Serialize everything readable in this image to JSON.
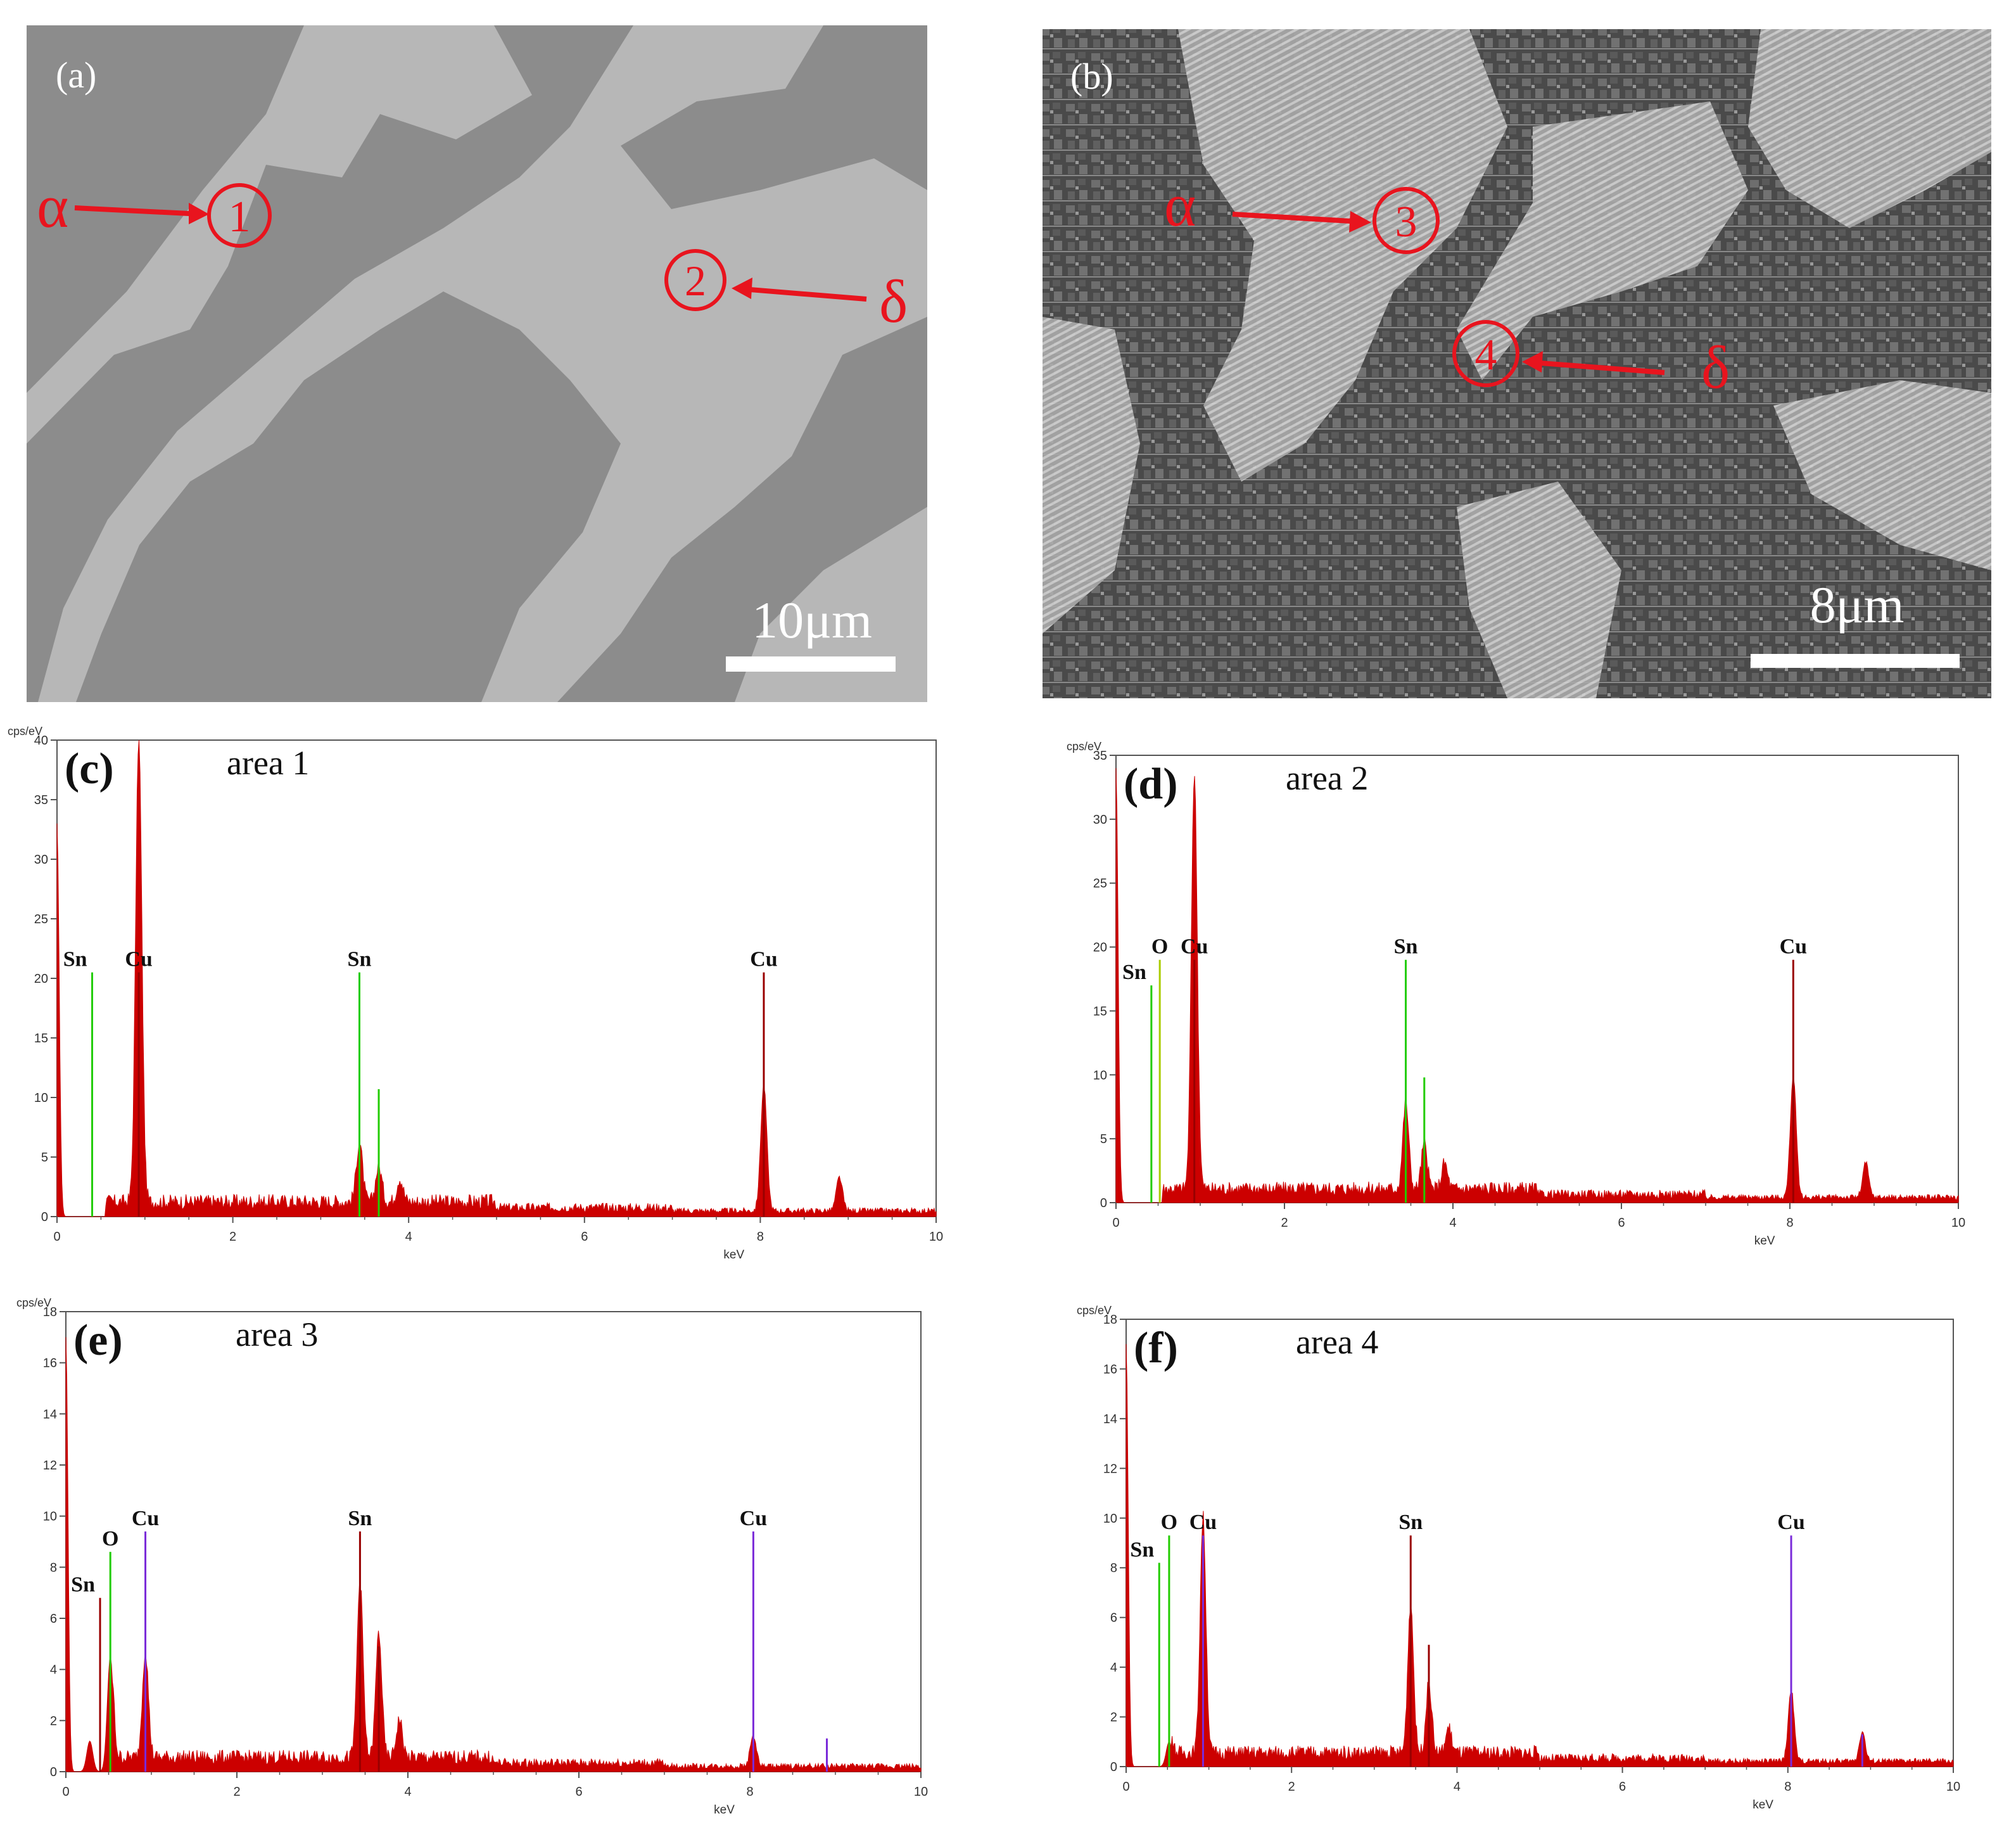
{
  "micrographs": [
    {
      "panel_label": "(a)",
      "annotations": [
        {
          "phase": "α",
          "area": "1"
        },
        {
          "phase": "δ",
          "area": "2"
        }
      ],
      "scale_bar": "10μm"
    },
    {
      "panel_label": "(b)",
      "annotations": [
        {
          "phase": "α",
          "area": "3"
        },
        {
          "phase": "δ",
          "area": "4"
        }
      ],
      "scale_bar": "8μm"
    }
  ],
  "colors": {
    "spectrum": "#cc0000",
    "sn_line": "#22cc00",
    "o_line": "#aacc00",
    "cu_line": "#990000",
    "marker_line": "#7a2bd9",
    "annotation": "#e8141e"
  },
  "chart_data": [
    {
      "type": "area",
      "panel_label": "(c)",
      "title": "area 1",
      "ylabel": "cps/eV",
      "xlabel": "keV",
      "xlim": [
        0,
        10
      ],
      "ylim": [
        0,
        40
      ],
      "xticks": [
        0,
        2,
        4,
        6,
        8,
        10
      ],
      "yticks": [
        0,
        5,
        10,
        15,
        20,
        25,
        30,
        35,
        40
      ],
      "peaks": [
        {
          "x": 0.0,
          "y": 33.0
        },
        {
          "x": 0.93,
          "y": 39.0
        },
        {
          "x": 3.44,
          "y": 5.0
        },
        {
          "x": 3.66,
          "y": 3.0
        },
        {
          "x": 3.9,
          "y": 2.0
        },
        {
          "x": 8.04,
          "y": 10.5
        },
        {
          "x": 8.9,
          "y": 2.8
        }
      ],
      "element_lines": [
        {
          "element": "Sn",
          "x": 0.4,
          "height": 20.5,
          "line": "green"
        },
        {
          "element": "Cu",
          "x": 0.93,
          "height": 20.5,
          "line": "cu"
        },
        {
          "element": "Sn",
          "x": 3.44,
          "height": 20.5,
          "line": "green"
        },
        {
          "element": "",
          "x": 3.66,
          "height": 10.7,
          "line": "green"
        },
        {
          "element": "Cu",
          "x": 8.04,
          "height": 20.5,
          "line": "cu"
        }
      ]
    },
    {
      "type": "area",
      "panel_label": "(d)",
      "title": "area 2",
      "ylabel": "cps/eV",
      "xlabel": "keV",
      "xlim": [
        0,
        10
      ],
      "ylim": [
        0,
        35
      ],
      "xticks": [
        0,
        2,
        4,
        6,
        8,
        10
      ],
      "yticks": [
        0,
        5,
        10,
        15,
        20,
        25,
        30,
        35
      ],
      "peaks": [
        {
          "x": 0.0,
          "y": 34.0
        },
        {
          "x": 0.93,
          "y": 32.5
        },
        {
          "x": 3.44,
          "y": 6.8
        },
        {
          "x": 3.66,
          "y": 3.5
        },
        {
          "x": 3.9,
          "y": 2.0
        },
        {
          "x": 8.04,
          "y": 9.5
        },
        {
          "x": 8.9,
          "y": 2.7
        }
      ],
      "element_lines": [
        {
          "element": "Sn",
          "x": 0.42,
          "height": 17.0,
          "line": "green"
        },
        {
          "element": "O",
          "x": 0.52,
          "height": 19.0,
          "line": "yellowgreen"
        },
        {
          "element": "Cu",
          "x": 0.93,
          "height": 19.0,
          "line": "cu"
        },
        {
          "element": "Sn",
          "x": 3.44,
          "height": 19.0,
          "line": "green"
        },
        {
          "element": "",
          "x": 3.66,
          "height": 9.8,
          "line": "green"
        },
        {
          "element": "Cu",
          "x": 8.04,
          "height": 19.0,
          "line": "cu"
        }
      ]
    },
    {
      "type": "area",
      "panel_label": "(e)",
      "title": "area 3",
      "ylabel": "cps/eV",
      "xlabel": "keV",
      "xlim": [
        0,
        10
      ],
      "ylim": [
        0,
        18
      ],
      "xticks": [
        0,
        2,
        4,
        6,
        8,
        10
      ],
      "yticks": [
        0,
        2,
        4,
        6,
        8,
        10,
        12,
        14,
        16,
        18
      ],
      "peaks": [
        {
          "x": 0.0,
          "y": 17.0
        },
        {
          "x": 0.28,
          "y": 1.2
        },
        {
          "x": 0.52,
          "y": 4.5
        },
        {
          "x": 0.93,
          "y": 4.2
        },
        {
          "x": 3.44,
          "y": 6.9
        },
        {
          "x": 3.66,
          "y": 4.9
        },
        {
          "x": 3.9,
          "y": 1.5
        },
        {
          "x": 8.04,
          "y": 1.2
        }
      ],
      "element_lines": [
        {
          "element": "Sn",
          "x": 0.4,
          "height": 6.8,
          "line": "cu"
        },
        {
          "element": "O",
          "x": 0.52,
          "height": 8.6,
          "line": "green"
        },
        {
          "element": "Cu",
          "x": 0.93,
          "height": 9.4,
          "line": "purple"
        },
        {
          "element": "Sn",
          "x": 3.44,
          "height": 9.4,
          "line": "cu"
        },
        {
          "element": "",
          "x": 3.66,
          "height": 4.9,
          "line": "cu"
        },
        {
          "element": "Cu",
          "x": 8.04,
          "height": 9.4,
          "line": "purple"
        },
        {
          "element": "",
          "x": 8.9,
          "height": 1.3,
          "line": "purple"
        }
      ]
    },
    {
      "type": "area",
      "panel_label": "(f)",
      "title": "area 4",
      "ylabel": "cps/eV",
      "xlabel": "keV",
      "xlim": [
        0,
        10
      ],
      "ylim": [
        0,
        18
      ],
      "xticks": [
        0,
        2,
        4,
        6,
        8,
        10
      ],
      "yticks": [
        0,
        2,
        4,
        6,
        8,
        10,
        12,
        14,
        16,
        18
      ],
      "peaks": [
        {
          "x": 0.0,
          "y": 17.0
        },
        {
          "x": 0.52,
          "y": 1.0
        },
        {
          "x": 0.93,
          "y": 9.5
        },
        {
          "x": 3.44,
          "y": 6.0
        },
        {
          "x": 3.66,
          "y": 2.8
        },
        {
          "x": 3.9,
          "y": 1.0
        },
        {
          "x": 8.04,
          "y": 2.9
        },
        {
          "x": 8.9,
          "y": 1.2
        }
      ],
      "element_lines": [
        {
          "element": "Sn",
          "x": 0.4,
          "height": 8.2,
          "line": "green"
        },
        {
          "element": "O",
          "x": 0.52,
          "height": 9.3,
          "line": "green"
        },
        {
          "element": "Cu",
          "x": 0.93,
          "height": 9.3,
          "line": "purple"
        },
        {
          "element": "Sn",
          "x": 3.44,
          "height": 9.3,
          "line": "cu"
        },
        {
          "element": "",
          "x": 3.66,
          "height": 4.9,
          "line": "cu"
        },
        {
          "element": "Cu",
          "x": 8.04,
          "height": 9.3,
          "line": "purple"
        },
        {
          "element": "",
          "x": 8.9,
          "height": 1.3,
          "line": "purple"
        }
      ]
    }
  ]
}
